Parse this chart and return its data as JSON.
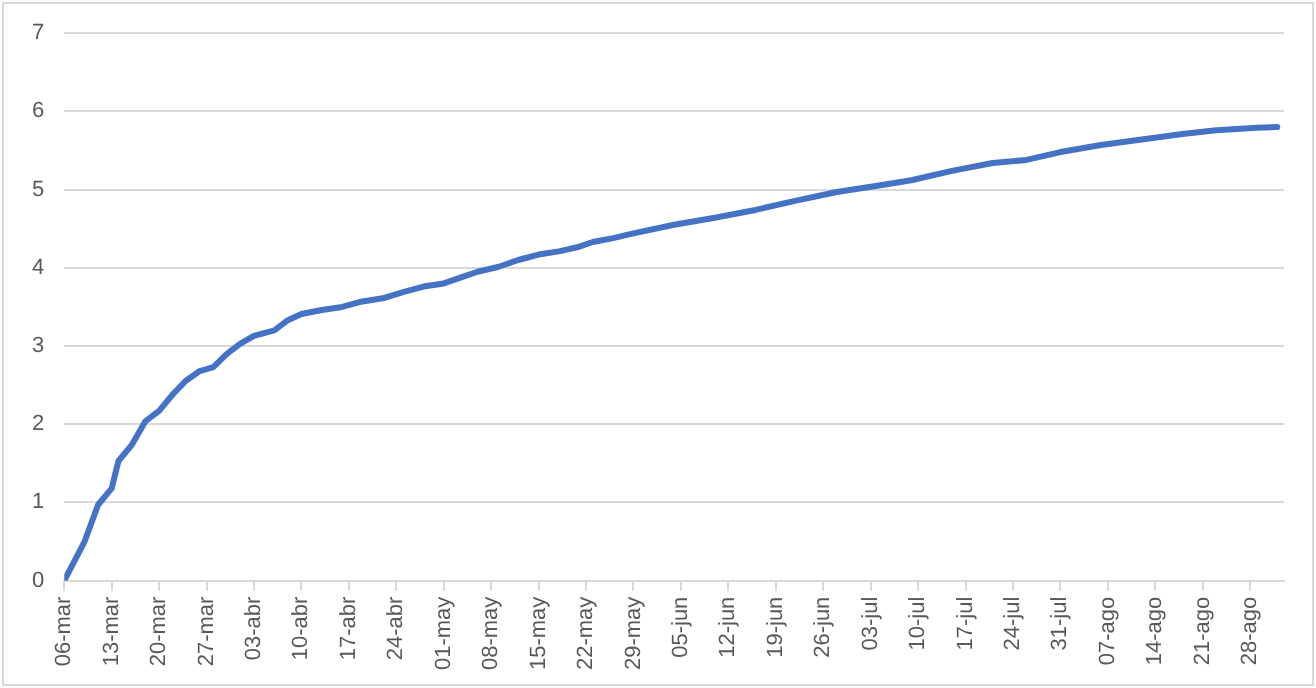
{
  "chart_data": {
    "type": "line",
    "x": [
      "--03-06",
      "--03-09",
      "--03-11",
      "--03-13",
      "--03-14",
      "--03-16",
      "--03-18",
      "--03-20",
      "--03-22",
      "--03-24",
      "--03-26",
      "--03-28",
      "--03-30",
      "--04-01",
      "--04-03",
      "--04-06",
      "--04-08",
      "--04-10",
      "--04-13",
      "--04-16",
      "--04-19",
      "--04-22",
      "--04-25",
      "--04-28",
      "--05-01",
      "--05-04",
      "--05-06",
      "--05-09",
      "--05-12",
      "--05-15",
      "--05-18",
      "--05-21",
      "--05-23",
      "--05-26",
      "--05-29",
      "--06-04",
      "--06-10",
      "--06-16",
      "--06-22",
      "--06-28",
      "--07-04",
      "--07-09",
      "--07-15",
      "--07-21",
      "--07-26",
      "--07-31",
      "--08-06",
      "--08-12",
      "--08-18",
      "--08-23",
      "--08-29",
      "--09-01"
    ],
    "series": [
      {
        "color": "#4472c4",
        "values": [
          0,
          0.5,
          0.97,
          1.18,
          1.53,
          1.74,
          2.04,
          2.17,
          2.38,
          2.56,
          2.68,
          2.73,
          2.9,
          3.03,
          3.13,
          3.2,
          3.33,
          3.41,
          3.46,
          3.5,
          3.57,
          3.61,
          3.69,
          3.76,
          3.8,
          3.89,
          3.95,
          4.01,
          4.1,
          4.17,
          4.21,
          4.27,
          4.33,
          4.38,
          4.44,
          4.55,
          4.64,
          4.74,
          4.86,
          4.97,
          5.05,
          5.12,
          5.24,
          5.34,
          5.38,
          5.48,
          5.57,
          5.64,
          5.71,
          5.76,
          5.79,
          5.8
        ]
      }
    ],
    "xlim": [
      "--03-06",
      "--09-02"
    ],
    "xticks": [
      {
        "value": "--03-06",
        "label": "06-mar"
      },
      {
        "value": "--03-13",
        "label": "13-mar"
      },
      {
        "value": "--03-20",
        "label": "20-mar"
      },
      {
        "value": "--03-27",
        "label": "27-mar"
      },
      {
        "value": "--04-03",
        "label": "03-abr"
      },
      {
        "value": "--04-10",
        "label": "10-abr"
      },
      {
        "value": "--04-17",
        "label": "17-abr"
      },
      {
        "value": "--04-24",
        "label": "24-abr"
      },
      {
        "value": "--05-01",
        "label": "01-may"
      },
      {
        "value": "--05-08",
        "label": "08-may"
      },
      {
        "value": "--05-15",
        "label": "15-may"
      },
      {
        "value": "--05-22",
        "label": "22-may"
      },
      {
        "value": "--05-29",
        "label": "29-may"
      },
      {
        "value": "--06-05",
        "label": "05-jun"
      },
      {
        "value": "--06-12",
        "label": "12-jun"
      },
      {
        "value": "--06-19",
        "label": "19-jun"
      },
      {
        "value": "--06-26",
        "label": "26-jun"
      },
      {
        "value": "--07-03",
        "label": "03-jul"
      },
      {
        "value": "--07-10",
        "label": "10-jul"
      },
      {
        "value": "--07-17",
        "label": "17-jul"
      },
      {
        "value": "--07-24",
        "label": "24-jul"
      },
      {
        "value": "--07-31",
        "label": "31-jul"
      },
      {
        "value": "--08-07",
        "label": "07-ago"
      },
      {
        "value": "--08-14",
        "label": "14-ago"
      },
      {
        "value": "--08-21",
        "label": "21-ago"
      },
      {
        "value": "--08-28",
        "label": "28-ago"
      }
    ],
    "ylim": [
      0,
      7
    ],
    "yticks": [
      0,
      1,
      2,
      3,
      4,
      5,
      6,
      7
    ],
    "grid": "y",
    "marker": "none",
    "line_style": "solid"
  }
}
